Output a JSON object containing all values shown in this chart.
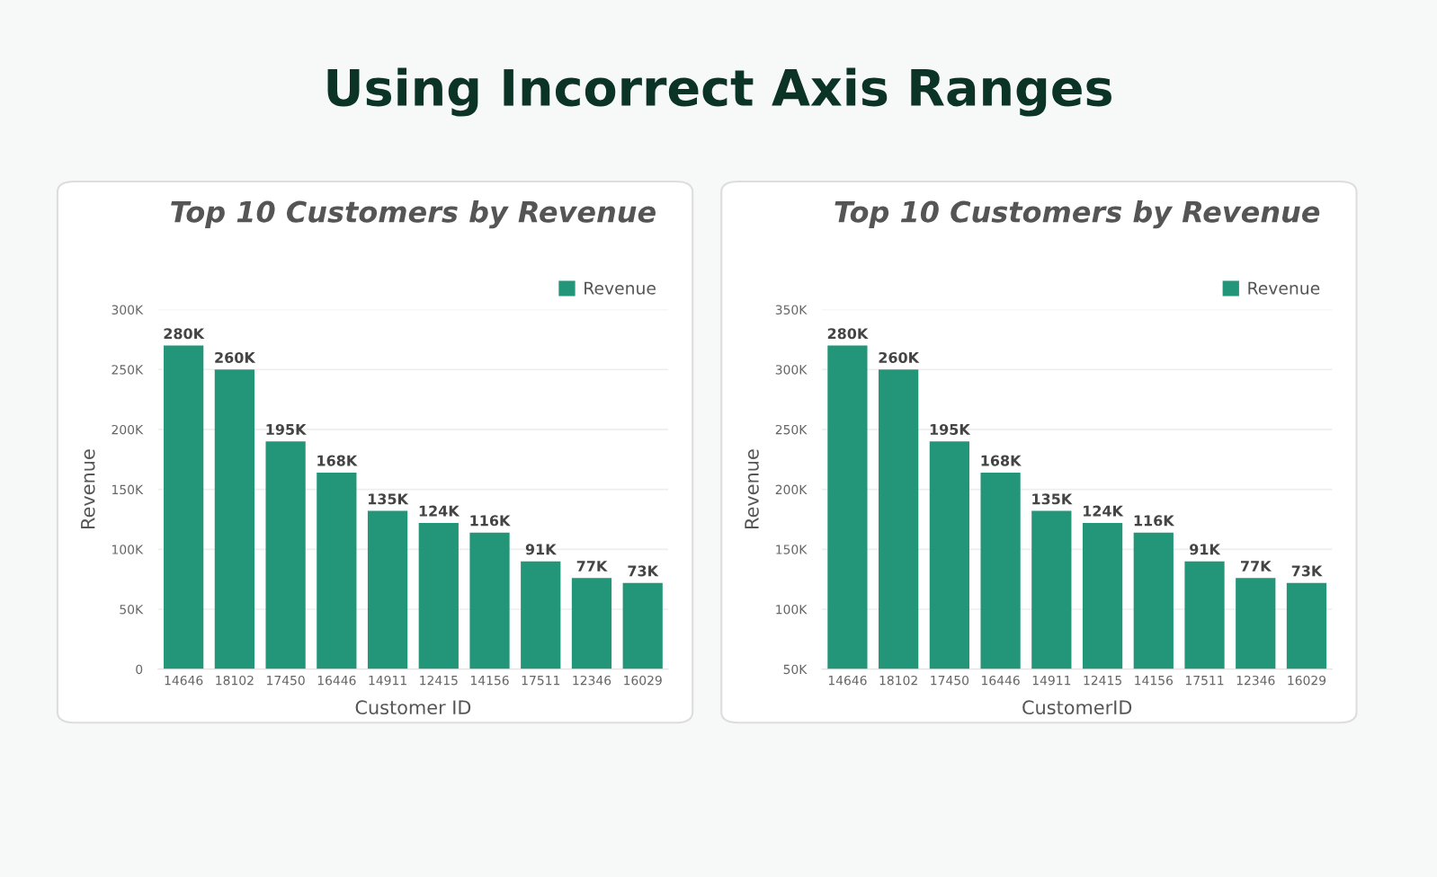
{
  "chart_data": [
    {
      "type": "bar",
      "title": "Top 10 Customers by Revenue",
      "xlabel": "Customer ID",
      "ylabel": "Revenue",
      "annotations": [
        "Using Incorrect Axis Ranges",
        {
          "text": "280K",
          "x": "14646",
          "y": 270000
        },
        {
          "text": "260K",
          "x": "18102",
          "y": 250000
        },
        {
          "text": "195K",
          "x": "17450",
          "y": 190000
        },
        {
          "text": "168K",
          "x": "16446",
          "y": 164000
        },
        {
          "text": "135K",
          "x": "14911",
          "y": 132000
        },
        {
          "text": "124K",
          "x": "12415",
          "y": 122000
        },
        {
          "text": "116K",
          "x": "14156",
          "y": 114000
        },
        {
          "text": "91K",
          "x": "17511",
          "y": 90000
        },
        {
          "text": "77K",
          "x": "12346",
          "y": 76000
        },
        {
          "text": "73K",
          "x": "16029",
          "y": 72000
        }
      ],
      "categories": [
        "14646",
        "18102",
        "17450",
        "16446",
        "14911",
        "12415",
        "14156",
        "17511",
        "12346",
        "16029"
      ],
      "series": [
        {
          "name": "Revenue",
          "color": "#23967a",
          "values": [
            270000,
            250000,
            190000,
            164000,
            132000,
            122000,
            114000,
            90000,
            76000,
            72000
          ]
        }
      ],
      "ylim": [
        0,
        300000
      ],
      "yticks": [
        0,
        {
          "value": 50000,
          "label": "50K"
        },
        {
          "value": 100000,
          "label": "100K"
        },
        {
          "value": 150000,
          "label": "150K"
        },
        {
          "value": 200000,
          "label": "200K"
        },
        {
          "value": 250000,
          "label": "250K"
        },
        {
          "value": 300000,
          "label": "300K"
        }
      ],
      "grid": "y",
      "legend": "top right"
    },
    {
      "type": "bar",
      "title": "Top 10 Customers by Revenue",
      "xlabel": "CustomerID",
      "ylabel": "Revenue",
      "annotations": [
        {
          "text": "280K",
          "x": "14646",
          "y": 320000
        },
        {
          "text": "260K",
          "x": "18102",
          "y": 300000
        },
        {
          "text": "195K",
          "x": "17450",
          "y": 240000
        },
        {
          "text": "168K",
          "x": "16446",
          "y": 214000
        },
        {
          "text": "135K",
          "x": "14911",
          "y": 182000
        },
        {
          "text": "124K",
          "x": "12415",
          "y": 172000
        },
        {
          "text": "116K",
          "x": "14156",
          "y": 164000
        },
        {
          "text": "91K",
          "x": "17511",
          "y": 140000
        },
        {
          "text": "77K",
          "x": "12346",
          "y": 126000
        },
        {
          "text": "73K",
          "x": "16029",
          "y": 122000
        }
      ],
      "categories": [
        "14646",
        "18102",
        "17450",
        "16446",
        "14911",
        "12415",
        "14156",
        "17511",
        "12346",
        "16029"
      ],
      "series": [
        {
          "name": "Revenue",
          "color": "#23967a",
          "values": [
            320000,
            300000,
            240000,
            214000,
            182000,
            172000,
            164000,
            140000,
            126000,
            122000
          ]
        }
      ],
      "ylim": [
        50000,
        350000
      ],
      "yticks": [
        {
          "value": 50000,
          "label": "50K"
        },
        {
          "value": 100000,
          "label": "100K"
        },
        {
          "value": 150000,
          "label": "150K"
        },
        {
          "value": 200000,
          "label": "200K"
        },
        {
          "value": 250000,
          "label": "250K"
        },
        {
          "value": 300000,
          "label": "300K"
        },
        {
          "value": 350000,
          "label": "350K"
        }
      ],
      "grid": "y",
      "legend": "top right"
    }
  ]
}
